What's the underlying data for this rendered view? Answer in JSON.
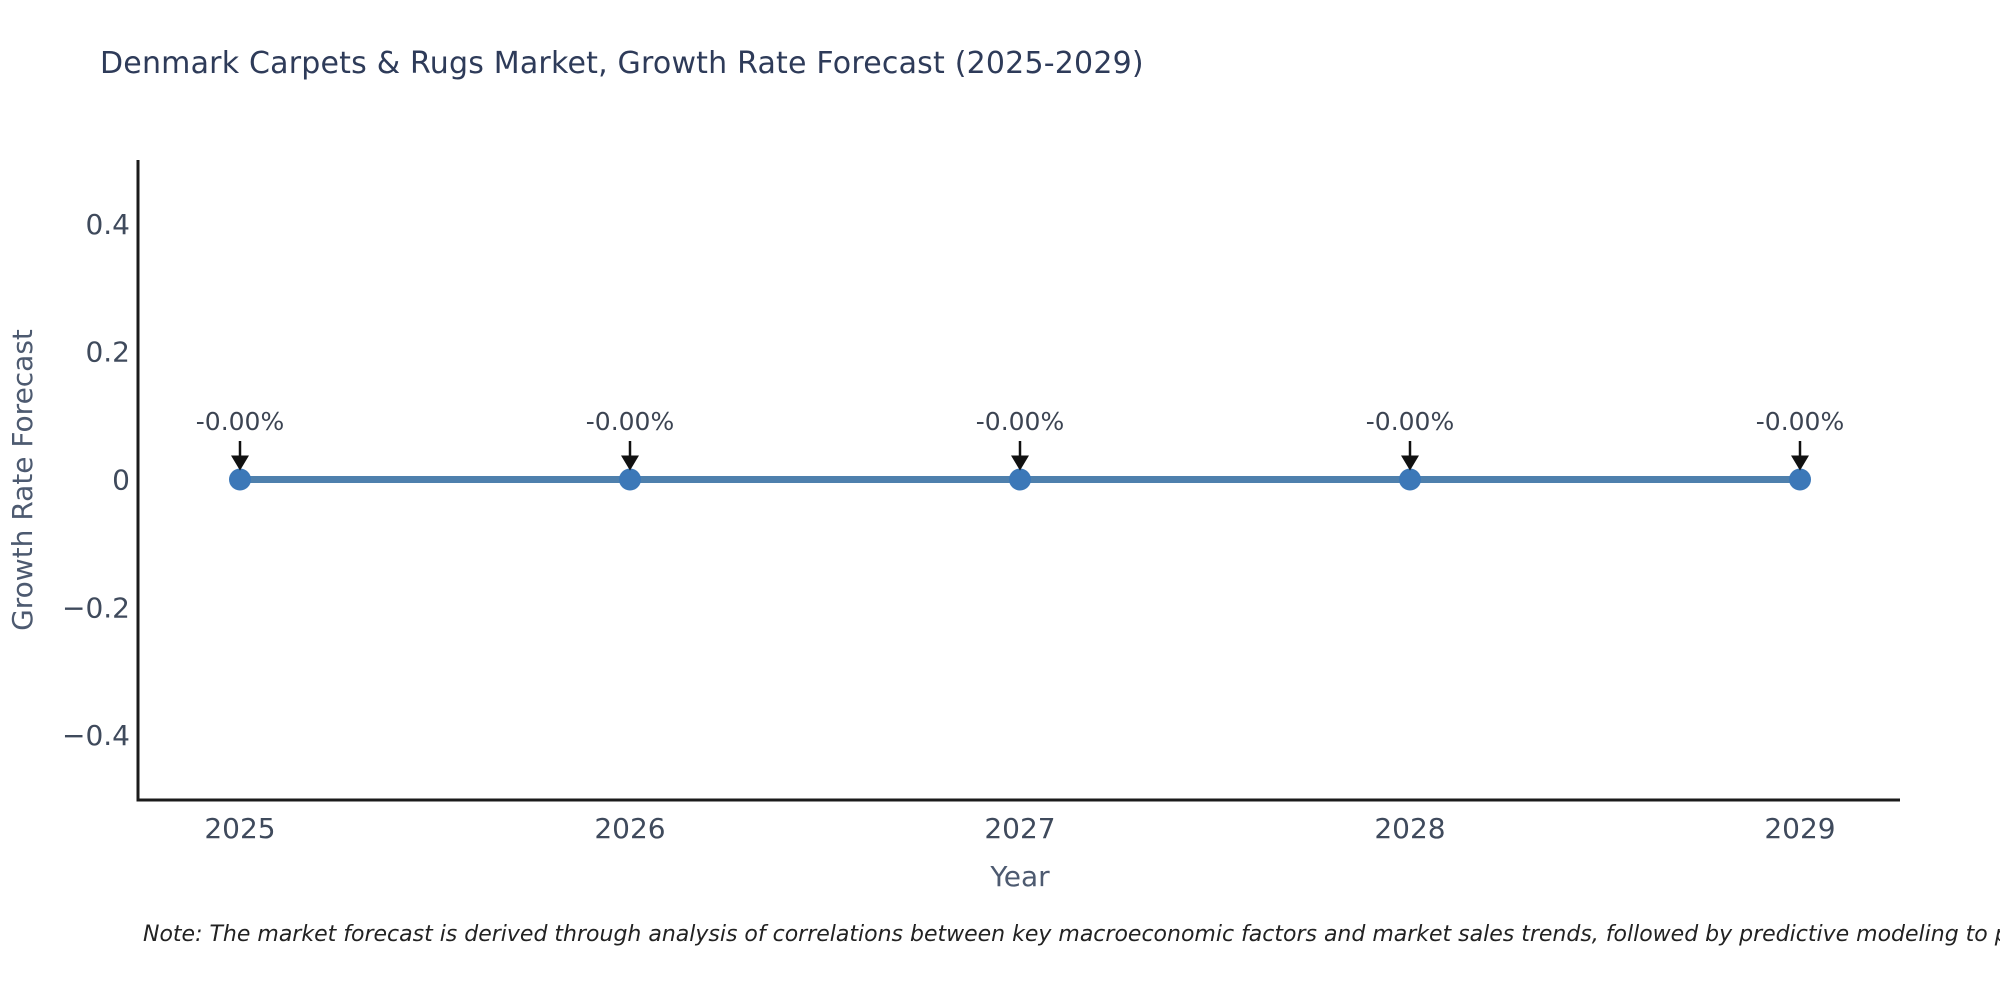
{
  "page": {
    "note": "Note: The market forecast is derived through analysis of correlations between key macroeconomic factors and market sales trends, followed by predictive modeling to project future sales."
  },
  "chart_data": {
    "type": "line",
    "title": "Denmark Carpets & Rugs Market, Growth Rate Forecast (2025-2029)",
    "xlabel": "Year",
    "ylabel": "Growth Rate Forecast",
    "x": [
      2025,
      2026,
      2027,
      2028,
      2029
    ],
    "xticks": [
      "2025",
      "2026",
      "2027",
      "2028",
      "2029"
    ],
    "series": [
      {
        "name": "Growth Rate Forecast",
        "values": [
          0,
          0,
          0,
          0,
          0
        ],
        "labels": [
          "-0.00%",
          "-0.00%",
          "-0.00%",
          "-0.00%",
          "-0.00%"
        ]
      }
    ],
    "yticks": [
      {
        "value": 0.4,
        "label": "0.4"
      },
      {
        "value": 0.2,
        "label": "0.2"
      },
      {
        "value": 0,
        "label": "0"
      },
      {
        "value": -0.2,
        "label": "−0.2"
      },
      {
        "value": -0.4,
        "label": "−0.4"
      }
    ],
    "ylim": [
      -0.5,
      0.5
    ],
    "grid": false,
    "legend": "none",
    "colors": {
      "line": "#4e80ad",
      "marker": "#3c78b8",
      "axis": "#1b1b1b",
      "arrow": "#111111"
    }
  }
}
